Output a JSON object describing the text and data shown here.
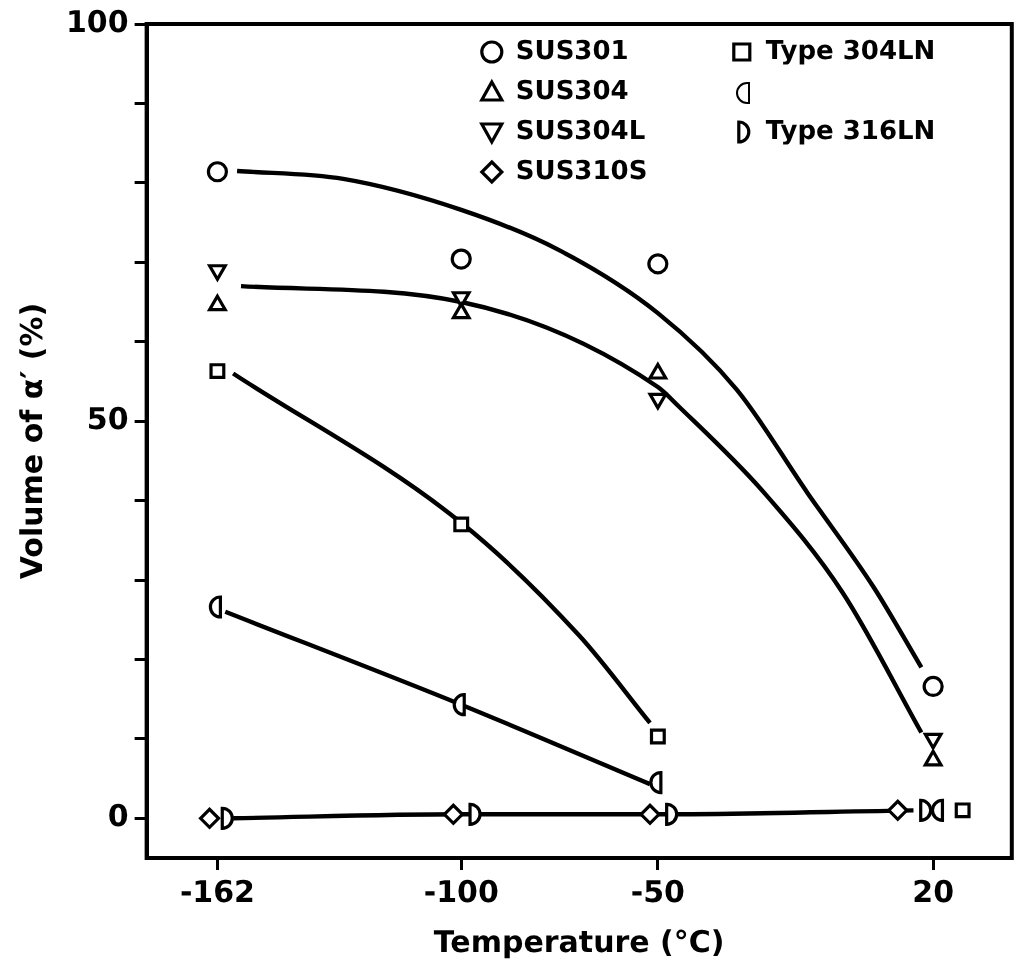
{
  "chart_data": {
    "type": "scatter",
    "xlabel": "Temperature (°C)",
    "ylabel": "Volume of α′ (%)",
    "xlim": [
      -180,
      40
    ],
    "xticks": [
      -162,
      -100,
      -50,
      20
    ],
    "ylim": [
      -5,
      100
    ],
    "yticks": [
      0,
      {
        "value": 10,
        "label": null
      },
      {
        "value": 20,
        "label": null
      },
      {
        "value": 30,
        "label": null
      },
      {
        "value": 40,
        "label": null
      },
      50,
      {
        "value": 60,
        "label": null
      },
      {
        "value": 70,
        "label": null
      },
      {
        "value": 80,
        "label": null
      },
      {
        "value": 90,
        "label": null
      },
      100
    ],
    "grid": false,
    "legend": "top right",
    "series": [
      {
        "name": "SUS301",
        "color": "#000000",
        "marker": "circle",
        "x": [
          -162,
          -100,
          -50,
          20
        ],
        "values": [
          81.4,
          70.4,
          69.8,
          16.6
        ]
      },
      {
        "name": "SUS304",
        "color": "#000000",
        "marker": "triangle",
        "x": [
          -162,
          -100,
          -50,
          20
        ],
        "values": [
          64.6,
          63.6,
          56,
          7.3
        ]
      },
      {
        "name": "SUS304L",
        "color": "#000000",
        "marker": "triangle-down",
        "x": [
          -162,
          -100,
          -50,
          20
        ],
        "values": [
          69,
          65.6,
          52.8,
          10
        ]
      },
      {
        "name": "SUS310S",
        "color": "#000000",
        "marker": "diamond",
        "x": [
          -164,
          -102,
          -52,
          11
        ],
        "values": [
          0,
          0.5,
          0.5,
          1
        ]
      },
      {
        "name": "Type 304LN",
        "color": "#000000",
        "marker": "square",
        "x": [
          -162,
          -100,
          -50,
          27.5
        ],
        "values": [
          56.3,
          37,
          10.3,
          1
        ]
      },
      {
        "color": "#000000",
        "marker": "half-circle-left",
        "x": [
          -162,
          -100,
          -50,
          21.6
        ],
        "values": [
          26.6,
          14.3,
          4.5,
          1
        ]
      },
      {
        "name": "Type 316LN",
        "color": "#000000",
        "marker": "half-circle-right",
        "x": [
          -160,
          -97,
          -47,
          17.6
        ],
        "values": [
          0,
          0.5,
          0.5,
          1
        ]
      },
      {
        "type": "line",
        "color": "#000000",
        "marker": "none",
        "x": [
          -157,
          -130,
          -100,
          -75,
          -50,
          -30,
          -12,
          5,
          17
        ],
        "values": [
          81.5,
          80.5,
          76.6,
          71.5,
          63.6,
          54,
          41,
          29,
          19
        ]
      },
      {
        "type": "line",
        "color": "#000000",
        "marker": "none",
        "x": [
          -156,
          -100,
          -50,
          -45,
          -23,
          -3,
          17
        ],
        "values": [
          67,
          65,
          54.3,
          52,
          41,
          28.4,
          10.8
        ]
      },
      {
        "type": "line",
        "color": "#000000",
        "marker": "none",
        "x": [
          -158,
          -100,
          -70,
          -52
        ],
        "values": [
          56,
          37.2,
          23,
          12
        ]
      },
      {
        "type": "line",
        "color": "#000000",
        "marker": "none",
        "x": [
          -160,
          -100,
          -52
        ],
        "values": [
          26,
          14.3,
          4.3
        ]
      },
      {
        "type": "line",
        "color": "#000000",
        "marker": "none",
        "x": [
          -158,
          -100,
          -50,
          15
        ],
        "values": [
          0,
          0.5,
          0.5,
          1
        ]
      }
    ]
  }
}
